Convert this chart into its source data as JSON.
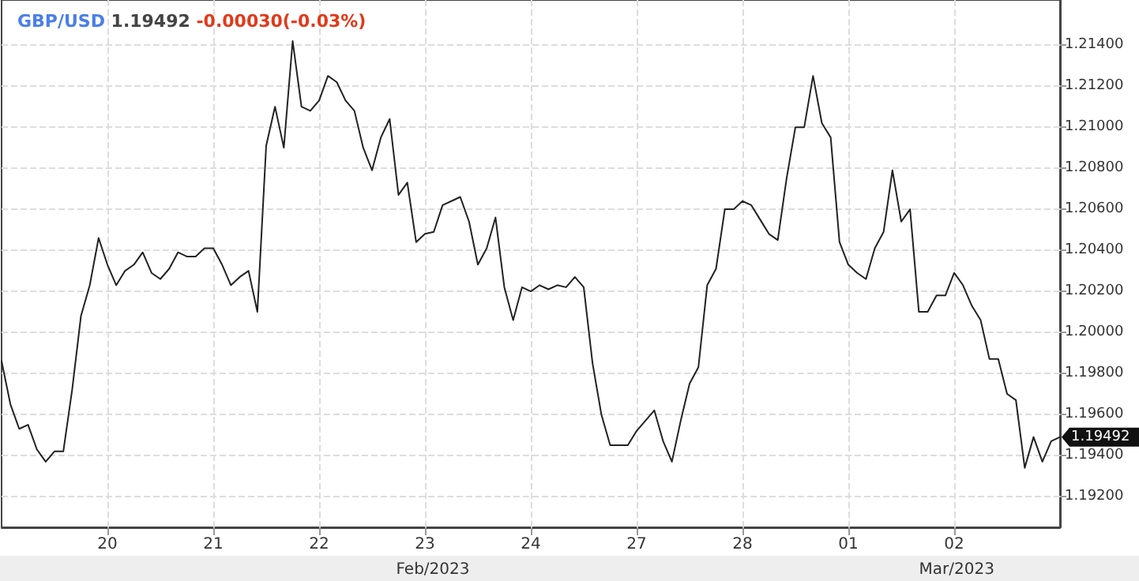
{
  "chart_data": {
    "type": "line",
    "title": "GBP/USD 1.19492 -0.00030(-0.03%)",
    "categories": [
      null,
      null,
      null,
      null,
      null,
      null,
      null,
      null,
      null,
      null,
      null,
      null,
      "20",
      null,
      null,
      null,
      null,
      null,
      null,
      null,
      null,
      null,
      null,
      null,
      "21",
      null,
      null,
      null,
      null,
      null,
      null,
      null,
      null,
      null,
      null,
      null,
      "22",
      null,
      null,
      null,
      null,
      null,
      null,
      null,
      null,
      null,
      null,
      null,
      "23",
      null,
      null,
      null,
      null,
      null,
      null,
      null,
      null,
      null,
      null,
      null,
      "24",
      null,
      null,
      null,
      null,
      null,
      null,
      null,
      null,
      null,
      null,
      null,
      "27",
      null,
      null,
      null,
      null,
      null,
      null,
      null,
      null,
      null,
      null,
      null,
      "28",
      null,
      null,
      null,
      null,
      null,
      null,
      null,
      null,
      null,
      null,
      null,
      "01",
      null,
      null,
      null,
      null,
      null,
      null,
      null,
      null,
      null,
      null,
      null,
      "02",
      null,
      null,
      null,
      null,
      null,
      null,
      null,
      null,
      null,
      null,
      null,
      null
    ],
    "series": [
      {
        "color": "#222222",
        "values": [
          1.1986,
          1.1965,
          1.1953,
          1.1955,
          1.1943,
          1.1937,
          1.1942,
          1.1942,
          1.1972,
          1.2008,
          1.2023,
          1.2046,
          1.2033,
          1.2023,
          1.203,
          1.2033,
          1.2039,
          1.2029,
          1.2026,
          1.2031,
          1.2039,
          1.2037,
          1.2037,
          1.2041,
          1.2041,
          1.2033,
          1.2023,
          1.2027,
          1.203,
          1.201,
          1.2091,
          1.211,
          1.209,
          1.2142,
          1.211,
          1.2108,
          1.2113,
          1.2125,
          1.2122,
          1.2113,
          1.2108,
          1.209,
          1.2079,
          1.2095,
          1.2104,
          1.2067,
          1.2073,
          1.2044,
          1.2048,
          1.2049,
          1.2062,
          1.2064,
          1.2066,
          1.2054,
          1.2033,
          1.2041,
          1.2056,
          1.2022,
          1.2006,
          1.2022,
          1.202,
          1.2023,
          1.2021,
          1.2023,
          1.2022,
          1.2027,
          1.2022,
          1.1985,
          1.196,
          1.1945,
          1.1945,
          1.1945,
          1.1952,
          1.1957,
          1.1962,
          1.1947,
          1.1937,
          1.1957,
          1.1975,
          1.1983,
          1.2023,
          1.2031,
          1.206,
          1.206,
          1.2064,
          1.2062,
          1.2055,
          1.2048,
          1.2045,
          1.2075,
          1.21,
          1.21,
          1.2125,
          1.2102,
          1.2095,
          1.2044,
          1.2033,
          1.2029,
          1.2026,
          1.2041,
          1.2049,
          1.2079,
          1.2054,
          1.206,
          1.201,
          1.201,
          1.2018,
          1.2018,
          1.2029,
          1.2023,
          1.2013,
          1.2006,
          1.1987,
          1.1987,
          1.197,
          1.1967,
          1.1934,
          1.1949,
          1.1937,
          1.1947,
          1.1949
        ]
      }
    ],
    "ylim": [
      1.1905,
      1.2162
    ],
    "yticks": [
      {
        "value": 1.192,
        "label": "1.19200"
      },
      {
        "value": 1.194,
        "label": "1.19400"
      },
      {
        "value": 1.196,
        "label": "1.19600"
      },
      {
        "value": 1.198,
        "label": "1.19800"
      },
      {
        "value": 1.2,
        "label": "1.20000"
      },
      {
        "value": 1.202,
        "label": "1.20200"
      },
      {
        "value": 1.204,
        "label": "1.20400"
      },
      {
        "value": 1.206,
        "label": "1.20600"
      },
      {
        "value": 1.208,
        "label": "1.20800"
      },
      {
        "value": 1.21,
        "label": "1.21000"
      },
      {
        "value": 1.212,
        "label": "1.21200"
      },
      {
        "value": 1.214,
        "label": "1.21400"
      }
    ],
    "annotations": [
      "Feb/2023",
      "Mar/2023",
      "1.19492"
    ],
    "grid": true,
    "marker": "none",
    "line_style": "solid"
  }
}
